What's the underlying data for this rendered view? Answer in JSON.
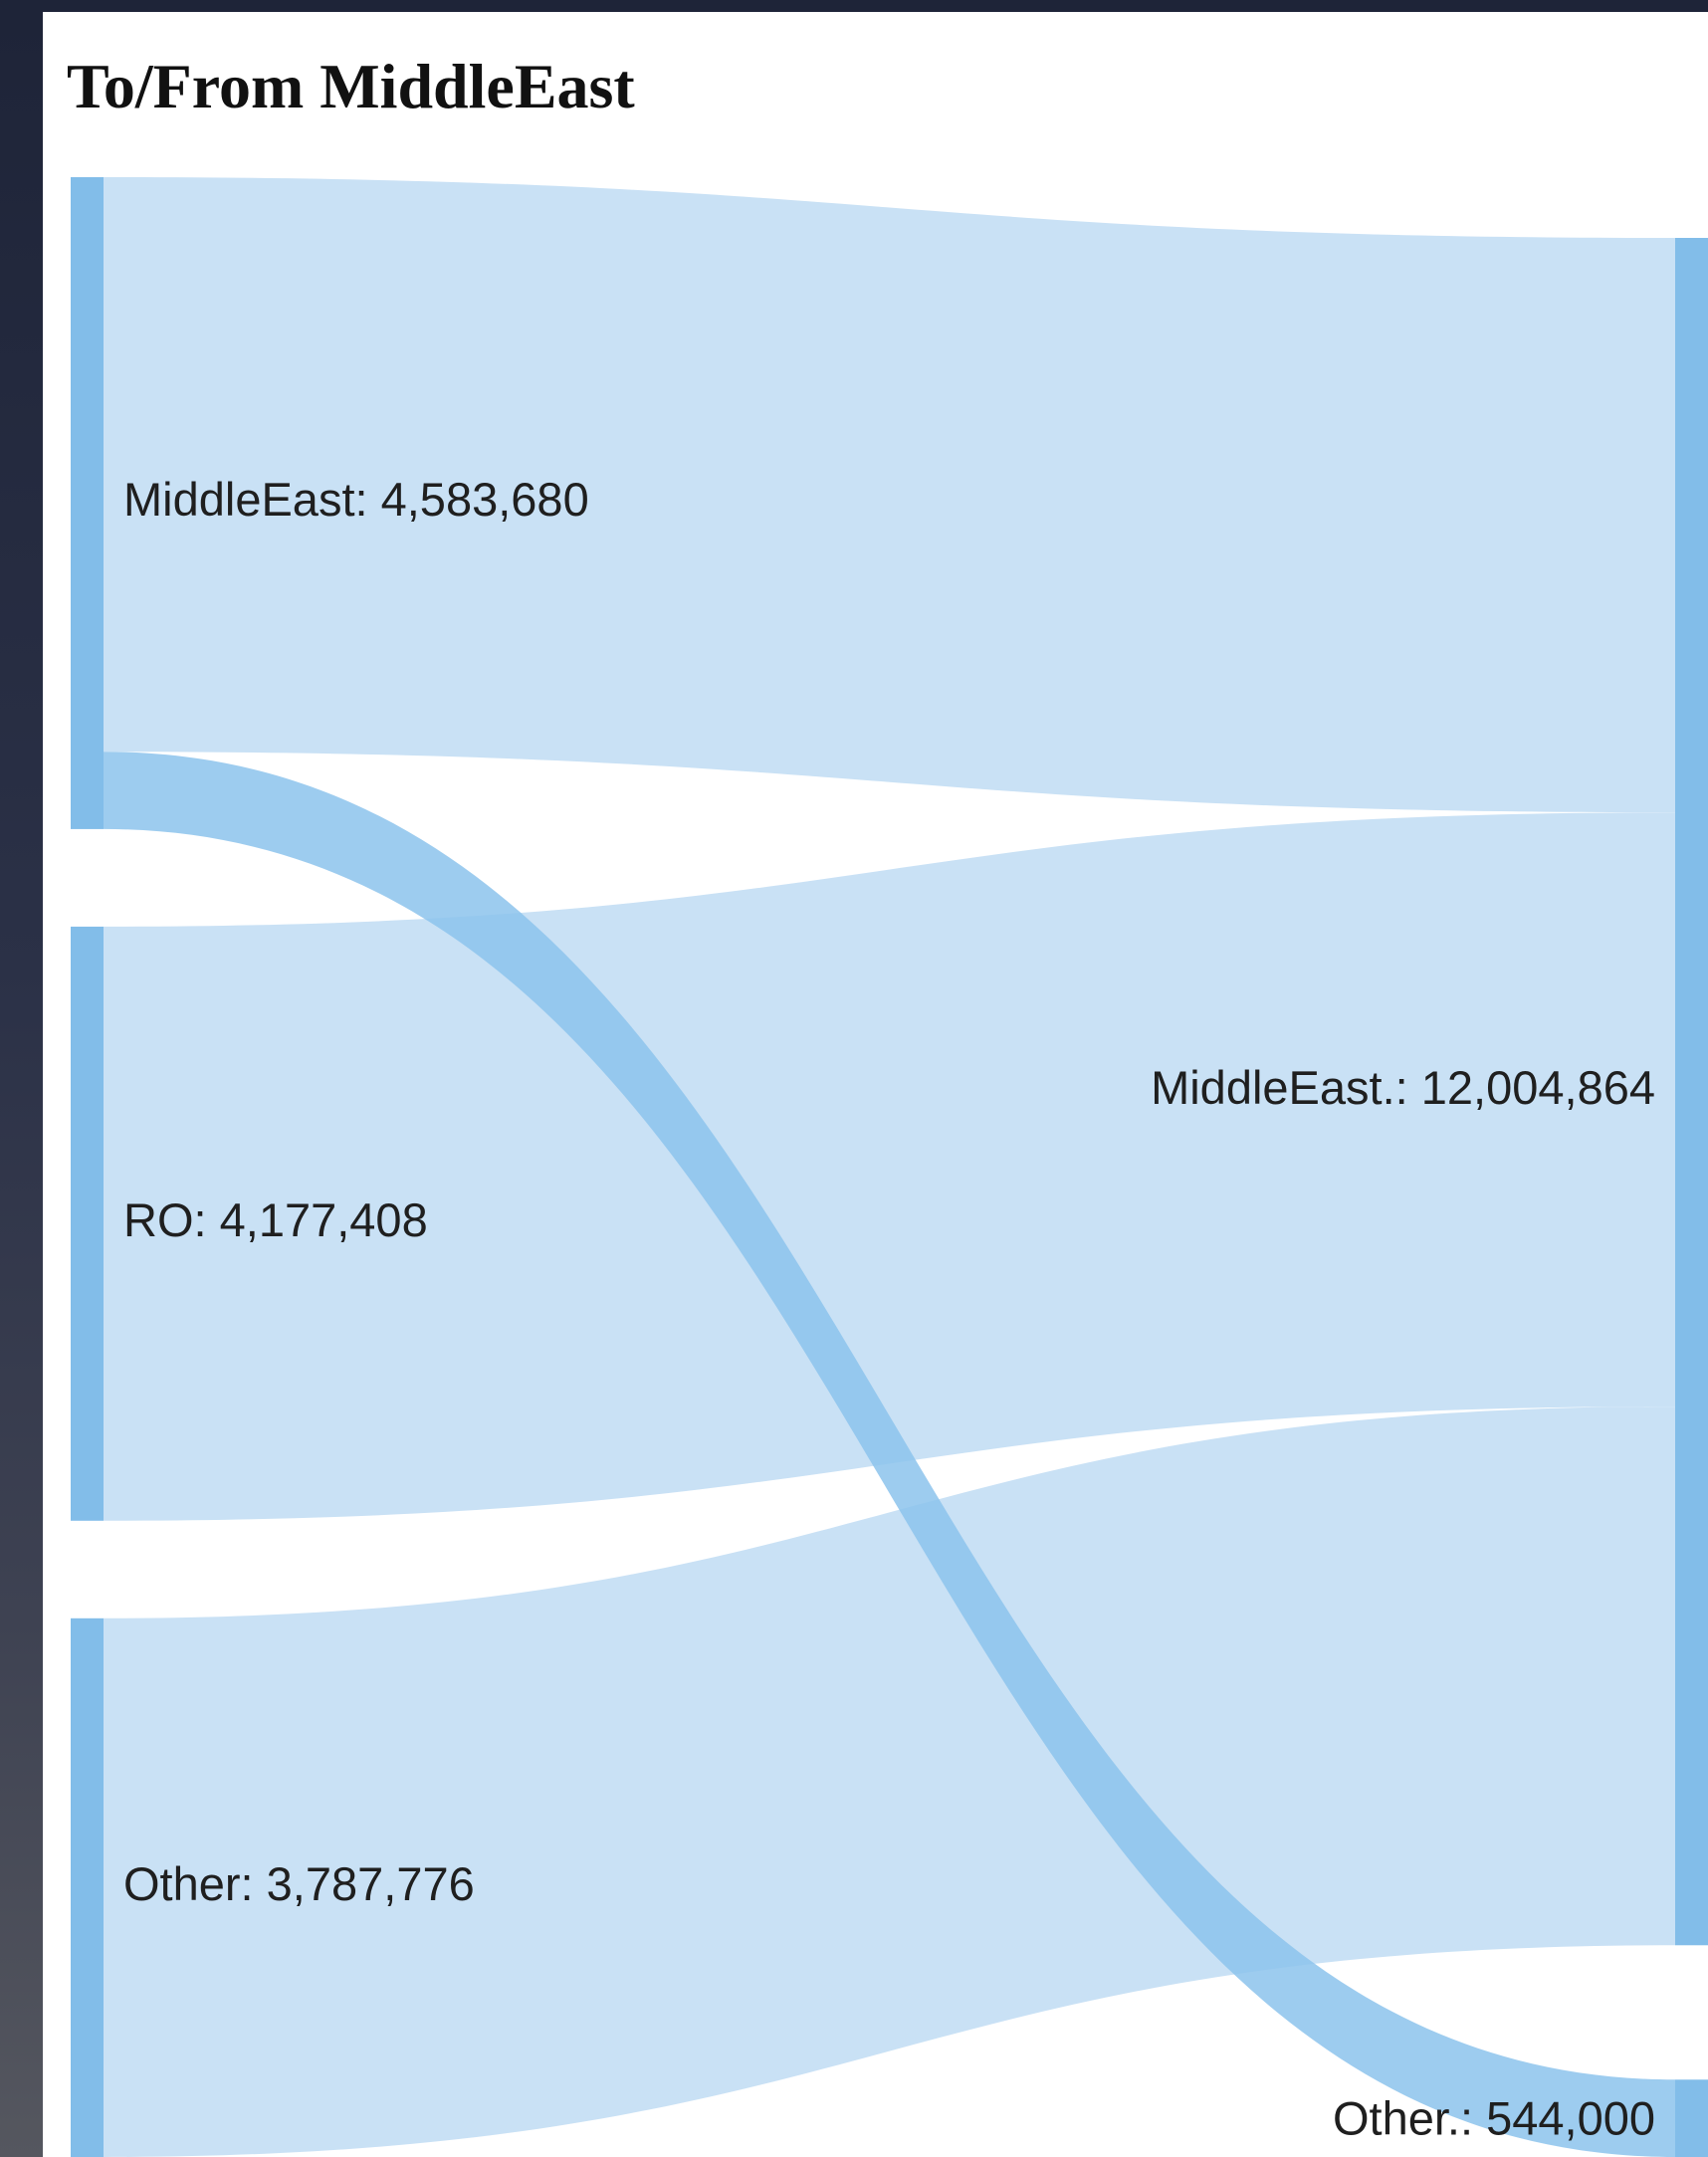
{
  "title": "To/From MiddleEast",
  "colors": {
    "node": "#82bde9",
    "link": "#c9e1f5",
    "link_highlight": "#8cc3ec",
    "text": "#1f1f1f"
  },
  "chart_data": {
    "type": "sankey",
    "title": "To/From MiddleEast",
    "sources": [
      {
        "id": "src-middleeast",
        "label": "MiddleEast: 4,583,680",
        "name": "MiddleEast",
        "value": 4583680
      },
      {
        "id": "src-ro",
        "label": "RO: 4,177,408",
        "name": "RO",
        "value": 4177408
      },
      {
        "id": "src-other",
        "label": "Other: 3,787,776",
        "name": "Other",
        "value": 3787776
      }
    ],
    "targets": [
      {
        "id": "tgt-middleeast",
        "label": "MiddleEast.: 12,004,864",
        "name": "MiddleEast.",
        "value": 12004864
      },
      {
        "id": "tgt-other",
        "label": "Other.: 544,000",
        "name": "Other.",
        "value": 544000
      }
    ],
    "links": [
      {
        "source": "src-middleeast",
        "target": "tgt-middleeast",
        "value": 4039680
      },
      {
        "source": "src-middleeast",
        "target": "tgt-other",
        "value": 544000
      },
      {
        "source": "src-ro",
        "target": "tgt-middleeast",
        "value": 4177408
      },
      {
        "source": "src-other",
        "target": "tgt-middleeast",
        "value": 3787776
      }
    ]
  }
}
